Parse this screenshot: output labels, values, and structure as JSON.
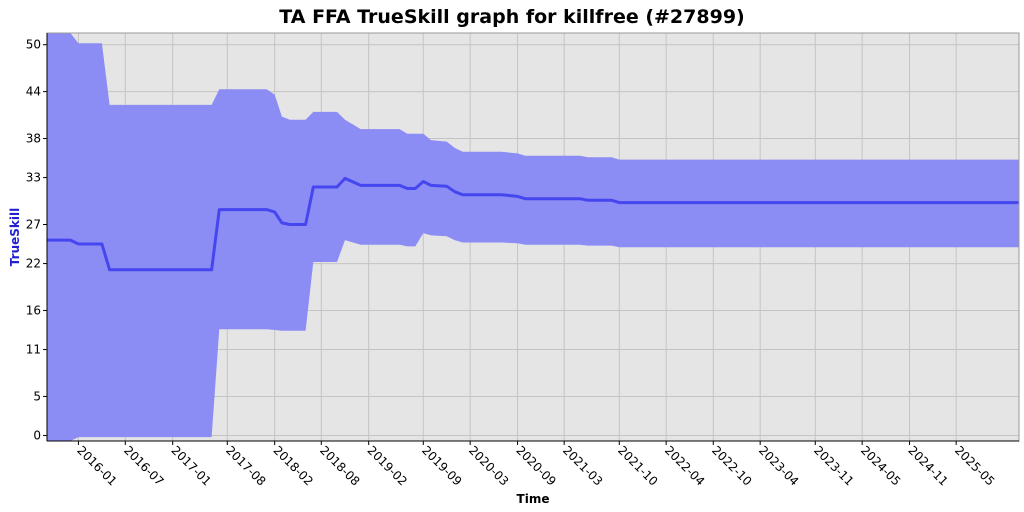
{
  "chart_data": {
    "type": "area",
    "title": "TA FFA TrueSkill graph for killfree (#27899)",
    "xlabel": "Time",
    "ylabel": "TrueSkill",
    "ylim": [
      -0.7,
      51.5
    ],
    "xlim": [
      "2015-09-01",
      "2025-12-31"
    ],
    "y_ticks": [
      "0",
      "5",
      "11",
      "16",
      "22",
      "27",
      "33",
      "38",
      "44",
      "50"
    ],
    "x_ticks": [
      "2016-01",
      "2016-07",
      "2017-01",
      "2017-08",
      "2018-02",
      "2018-08",
      "2019-02",
      "2019-09",
      "2020-03",
      "2020-09",
      "2021-03",
      "2021-10",
      "2022-04",
      "2022-10",
      "2023-04",
      "2023-11",
      "2024-05",
      "2024-11",
      "2025-05"
    ],
    "grid": true,
    "colors": {
      "plot_background": "#e5e5e5",
      "band": "#8c8cf5",
      "line": "#4646f0",
      "ylabel": "#2020d0"
    },
    "series": [
      {
        "values": [
          {
            "x": "2015-09-01",
            "mean": 25.0,
            "upper": 51.5,
            "lower": -0.7
          },
          {
            "x": "2015-12-01",
            "mean": 25.0,
            "upper": 51.5,
            "lower": -0.7
          },
          {
            "x": "2016-01-01",
            "mean": 24.5,
            "upper": 50.2,
            "lower": -0.2
          },
          {
            "x": "2016-04-01",
            "mean": 24.5,
            "upper": 50.2,
            "lower": -0.2
          },
          {
            "x": "2016-05-01",
            "mean": 21.2,
            "upper": 42.3,
            "lower": -0.2
          },
          {
            "x": "2017-06-01",
            "mean": 21.2,
            "upper": 42.3,
            "lower": -0.2
          },
          {
            "x": "2017-07-01",
            "mean": 28.9,
            "upper": 44.3,
            "lower": 13.6
          },
          {
            "x": "2018-01-01",
            "mean": 28.9,
            "upper": 44.3,
            "lower": 13.6
          },
          {
            "x": "2018-02-01",
            "mean": 28.6,
            "upper": 43.6,
            "lower": 13.5
          },
          {
            "x": "2018-03-01",
            "mean": 27.2,
            "upper": 40.8,
            "lower": 13.4
          },
          {
            "x": "2018-04-01",
            "mean": 27.0,
            "upper": 40.4,
            "lower": 13.4
          },
          {
            "x": "2018-06-01",
            "mean": 27.0,
            "upper": 40.4,
            "lower": 13.4
          },
          {
            "x": "2018-07-01",
            "mean": 31.8,
            "upper": 41.4,
            "lower": 22.2
          },
          {
            "x": "2018-10-01",
            "mean": 31.8,
            "upper": 41.4,
            "lower": 22.2
          },
          {
            "x": "2018-11-01",
            "mean": 32.9,
            "upper": 40.4,
            "lower": 25.0
          },
          {
            "x": "2019-01-01",
            "mean": 32.0,
            "upper": 39.2,
            "lower": 24.4
          },
          {
            "x": "2019-06-01",
            "mean": 32.0,
            "upper": 39.2,
            "lower": 24.4
          },
          {
            "x": "2019-07-01",
            "mean": 31.6,
            "upper": 38.6,
            "lower": 24.2
          },
          {
            "x": "2019-08-01",
            "mean": 31.6,
            "upper": 38.6,
            "lower": 24.2
          },
          {
            "x": "2019-09-01",
            "mean": 32.5,
            "upper": 38.6,
            "lower": 25.9
          },
          {
            "x": "2019-10-01",
            "mean": 32.0,
            "upper": 37.8,
            "lower": 25.6
          },
          {
            "x": "2019-12-01",
            "mean": 31.9,
            "upper": 37.6,
            "lower": 25.5
          },
          {
            "x": "2020-01-01",
            "mean": 31.2,
            "upper": 36.8,
            "lower": 25.0
          },
          {
            "x": "2020-02-01",
            "mean": 30.8,
            "upper": 36.3,
            "lower": 24.7
          },
          {
            "x": "2020-07-01",
            "mean": 30.8,
            "upper": 36.3,
            "lower": 24.7
          },
          {
            "x": "2020-09-01",
            "mean": 30.6,
            "upper": 36.1,
            "lower": 24.6
          },
          {
            "x": "2020-10-01",
            "mean": 30.3,
            "upper": 35.8,
            "lower": 24.4
          },
          {
            "x": "2021-05-01",
            "mean": 30.3,
            "upper": 35.8,
            "lower": 24.4
          },
          {
            "x": "2021-06-01",
            "mean": 30.1,
            "upper": 35.6,
            "lower": 24.3
          },
          {
            "x": "2021-09-01",
            "mean": 30.1,
            "upper": 35.6,
            "lower": 24.3
          },
          {
            "x": "2021-10-01",
            "mean": 29.8,
            "upper": 35.3,
            "lower": 24.1
          },
          {
            "x": "2025-12-31",
            "mean": 29.8,
            "upper": 35.3,
            "lower": 24.1
          }
        ]
      }
    ]
  }
}
